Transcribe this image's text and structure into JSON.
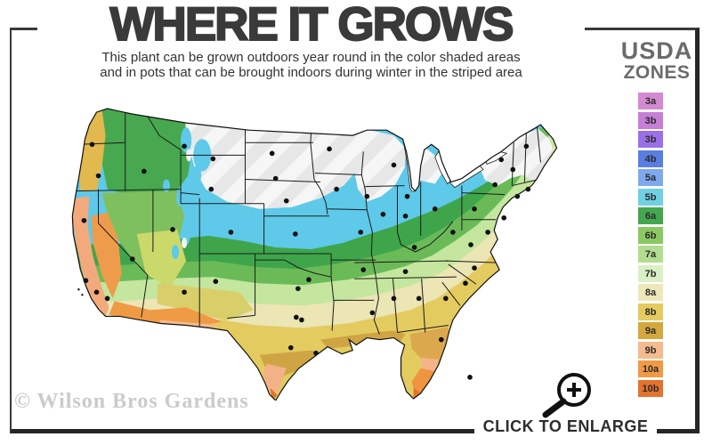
{
  "header": {
    "title": "WHERE IT GROWS",
    "subtitle_line1": "This plant can be grown outdoors year round in the color shaded areas",
    "subtitle_line2": "and in pots that can be brought indoors during winter in the striped area"
  },
  "legend": {
    "title_line1": "USDA",
    "title_line2": "ZONES",
    "zones": [
      {
        "label": "3a",
        "color": "#d48ad2"
      },
      {
        "label": "3b",
        "color": "#c77fd6"
      },
      {
        "label": "3b",
        "color": "#9b70e6"
      },
      {
        "label": "4b",
        "color": "#5a7ee0"
      },
      {
        "label": "5a",
        "color": "#7ea9ee"
      },
      {
        "label": "5b",
        "color": "#70d1e3"
      },
      {
        "label": "6a",
        "color": "#44a74f"
      },
      {
        "label": "6b",
        "color": "#8bc862"
      },
      {
        "label": "7a",
        "color": "#b2dc90"
      },
      {
        "label": "7b",
        "color": "#d9efc4"
      },
      {
        "label": "8a",
        "color": "#eee7ba"
      },
      {
        "label": "8b",
        "color": "#e3cb60"
      },
      {
        "label": "9a",
        "color": "#d4a83e"
      },
      {
        "label": "9b",
        "color": "#f4bb8e"
      },
      {
        "label": "10a",
        "color": "#f09a45"
      },
      {
        "label": "10b",
        "color": "#e2732e"
      }
    ]
  },
  "map": {
    "region": "contiguous United States",
    "colors": {
      "stripe_area": "#eaeaea",
      "blue": "#5ec9e9",
      "green_dark": "#3ea54b",
      "green_mid": "#6abb58",
      "green_pale": "#c4e69e",
      "cream": "#ece5b4",
      "gold": "#e3cb60",
      "mustard": "#cfa544",
      "peach": "#f2b286",
      "orange": "#ef9a45",
      "deep_orange": "#e2732e",
      "salmon": "#f2aa7c"
    }
  },
  "footer": {
    "watermark": "© Wilson Bros Gardens",
    "enlarge_label": "CLICK TO ENLARGE"
  }
}
